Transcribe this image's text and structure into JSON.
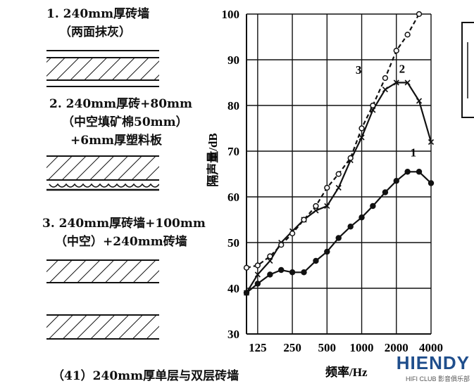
{
  "legend": {
    "item1_line1": "1. 240mm厚砖墙",
    "item1_line2": "（两面抹灰）",
    "item2_line1": "2. 240mm厚砖+80mm",
    "item2_line2": "（中空填矿棉50mm）",
    "item2_line3": "+6mm厚塑料板",
    "item3_line1": "3. 240mm厚砖墙+100mm",
    "item3_line2": "（中空）+240mm砖墙"
  },
  "caption": "（41）240mm厚单层与双层砖墙",
  "watermark": {
    "brand": "HIENDY",
    "sub": "HIFI CLUB 影音俱乐部"
  },
  "chart_data": {
    "type": "line",
    "xlabel": "频率/Hz",
    "ylabel": "隔声量/dB",
    "x_scale": "log",
    "x_ticks": [
      125,
      250,
      500,
      1000,
      2000,
      4000
    ],
    "x_tick_labels": [
      "125",
      "250",
      "500",
      "1000",
      "2000",
      "4000"
    ],
    "ylim": [
      30,
      100
    ],
    "y_ticks": [
      30,
      40,
      50,
      60,
      70,
      80,
      90,
      100
    ],
    "grid": true,
    "series": [
      {
        "name": "1",
        "marker": "dot",
        "line": "solid",
        "x": [
          100,
          125,
          160,
          200,
          250,
          315,
          400,
          500,
          630,
          800,
          1000,
          1250,
          1600,
          2000,
          2500,
          3150,
          4000
        ],
        "y": [
          39,
          41,
          43,
          44,
          43.5,
          43.5,
          46,
          48,
          51,
          53.5,
          55.5,
          58,
          61,
          63.5,
          65.5,
          65.5,
          63
        ]
      },
      {
        "name": "2",
        "marker": "x",
        "line": "solid",
        "x": [
          100,
          125,
          160,
          200,
          250,
          315,
          400,
          500,
          630,
          800,
          1000,
          1250,
          1600,
          2000,
          2500,
          3150,
          4000
        ],
        "y": [
          39,
          43,
          46,
          50,
          52.5,
          55,
          57,
          58,
          62,
          68,
          73,
          79,
          83.5,
          85,
          85,
          81,
          72
        ]
      },
      {
        "name": "3",
        "marker": "circle",
        "line": "dashed",
        "x": [
          100,
          125,
          160,
          200,
          250,
          315,
          400,
          500,
          630,
          800,
          1000,
          1250,
          1600,
          2000,
          2500,
          3150
        ],
        "y": [
          44.5,
          45,
          47,
          49.5,
          52,
          55,
          58,
          62,
          65,
          68.5,
          75,
          80,
          86,
          92,
          95.5,
          100
        ]
      }
    ]
  }
}
